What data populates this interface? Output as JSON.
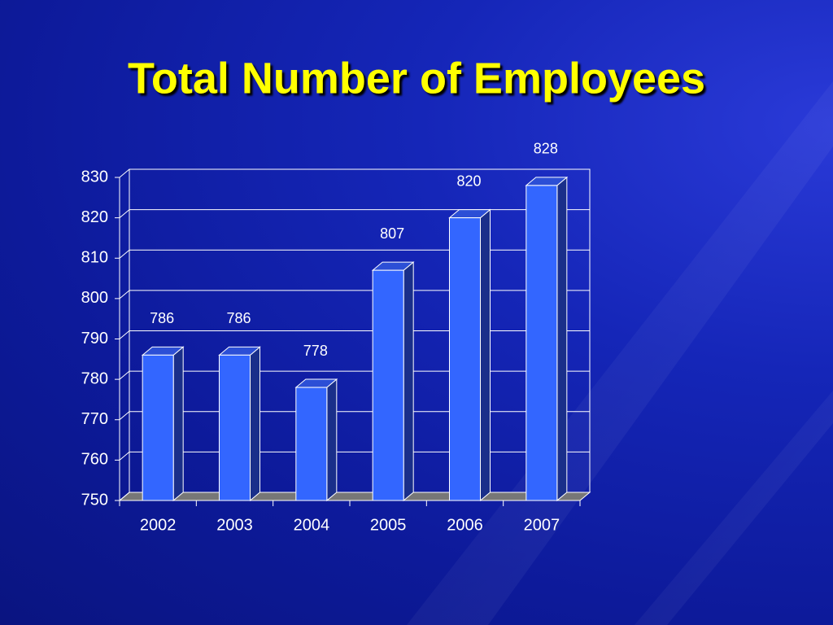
{
  "chart_data": {
    "type": "bar",
    "title": "Total Number of Employees",
    "categories": [
      "2002",
      "2003",
      "2004",
      "2005",
      "2006",
      "2007"
    ],
    "values": [
      786,
      786,
      778,
      807,
      820,
      828
    ],
    "color": "#3366ff",
    "ylim": [
      750,
      830
    ],
    "yticks": [
      750,
      760,
      770,
      780,
      790,
      800,
      810,
      820,
      830
    ],
    "grid": true
  }
}
